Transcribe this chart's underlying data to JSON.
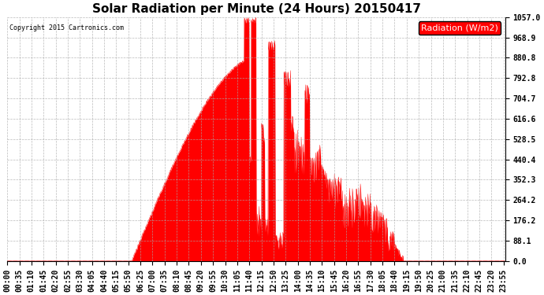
{
  "title": "Solar Radiation per Minute (24 Hours) 20150417",
  "copyright_text": "Copyright 2015 Cartronics.com",
  "legend_label": "Radiation (W/m2)",
  "y_max": 1057.0,
  "y_ticks": [
    0.0,
    88.1,
    176.2,
    264.2,
    352.3,
    440.4,
    528.5,
    616.6,
    704.7,
    792.8,
    880.8,
    968.9,
    1057.0
  ],
  "fill_color": "#FF0000",
  "line_color": "#FF0000",
  "background_color": "#FFFFFF",
  "grid_color": "#AAAAAA",
  "dashed_line_color": "#FF0000",
  "title_fontsize": 11,
  "tick_fontsize": 7,
  "legend_fontsize": 8,
  "x_tick_step_min": 35
}
